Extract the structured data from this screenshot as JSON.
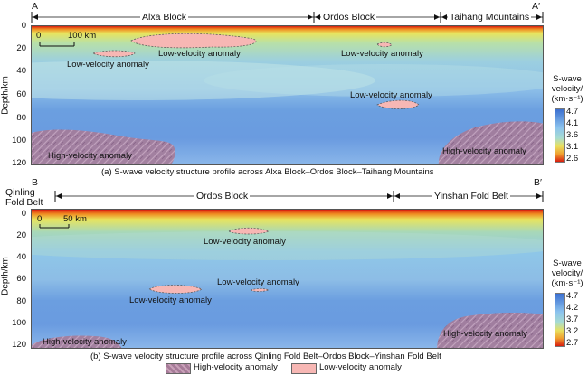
{
  "panel_a": {
    "endpoint_left": "A",
    "endpoint_right": "A′",
    "regions": [
      "Alxa Block",
      "Ordos Block",
      "Taihang Mountains"
    ],
    "scale_label": "100 km",
    "scale_zero": "0",
    "y_label": "Depth/km",
    "y_ticks": [
      "0",
      "20",
      "40",
      "60",
      "80",
      "100",
      "120"
    ],
    "anomalies": [
      "Low-velocity anomaly",
      "Low-velocity anomaly",
      "Low-velocity anomaly",
      "High-velocity anomaly",
      "High-velocity anomaly"
    ],
    "colorbar": {
      "title_line1": "S-wave",
      "title_line2": "velocity/",
      "title_line3": "(km·s⁻¹)",
      "ticks": [
        "4.7",
        "4.1",
        "3.6",
        "3.1",
        "2.6"
      ]
    },
    "caption": "(a) S-wave velocity structure profile across Alxa Block–Ordos Block–Taihang Mountains"
  },
  "panel_b": {
    "endpoint_left": "B",
    "endpoint_right": "B′",
    "left_region_line1": "Qinling",
    "left_region_line2": "Fold Belt",
    "regions": [
      "Ordos Block",
      "Yinshan Fold Belt"
    ],
    "scale_label": "50 km",
    "scale_zero": "0",
    "y_label": "Depth/km",
    "y_ticks": [
      "0",
      "20",
      "40",
      "60",
      "80",
      "100",
      "120"
    ],
    "anomalies": [
      "Low-velocity anomaly",
      "Low-velocity anomaly",
      "Low-velocity anomaly",
      "High-velocity anomaly",
      "High-velocity anomaly"
    ],
    "colorbar": {
      "title_line1": "S-wave",
      "title_line2": "velocity/",
      "title_line3": "(km·s⁻¹)",
      "ticks": [
        "4.7",
        "4.2",
        "3.7",
        "3.2",
        "2.7"
      ]
    },
    "caption": "(b) S-wave velocity structure profile across Qinling Fold Belt–Ordos Block–Yinshan Fold Belt"
  },
  "legend": {
    "high": "High-velocity anomaly",
    "low": "Low-velocity anomaly"
  },
  "colors": {
    "low_velocity": "#f7b7b4",
    "high_velocity": "#a87a98",
    "surface_red": "#d81d0f",
    "shallow_yellow": "#e6e25a",
    "mid_green": "#a8d8c0",
    "deep_blue": "#5a8fd6"
  }
}
